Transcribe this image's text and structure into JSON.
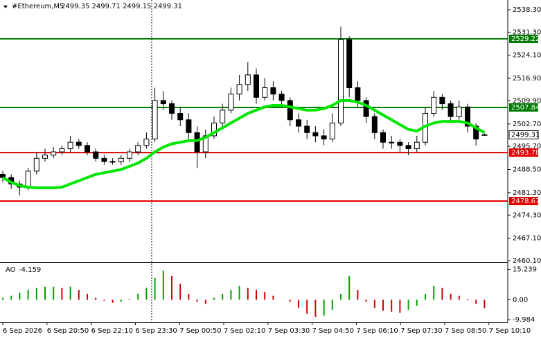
{
  "chart_data": {
    "type": "candlestick",
    "title": "#Ethereum,M5",
    "ohlc_text": "2499.35 2499.71 2499.15 2499.31",
    "candles": [
      [
        2487,
        2488,
        2484.5,
        2486
      ],
      [
        2486,
        2487,
        2482.5,
        2484
      ],
      [
        2484,
        2485,
        2480.5,
        2483
      ],
      [
        2483,
        2489,
        2482,
        2488
      ],
      [
        2488,
        2494,
        2487,
        2492
      ],
      [
        2492,
        2495,
        2491,
        2493
      ],
      [
        2493,
        2495.5,
        2492,
        2494
      ],
      [
        2494,
        2496,
        2493,
        2495
      ],
      [
        2495,
        2499,
        2494,
        2497
      ],
      [
        2497,
        2498,
        2495,
        2496
      ],
      [
        2496,
        2497,
        2493,
        2494
      ],
      [
        2494,
        2495,
        2491,
        2492
      ],
      [
        2492,
        2493,
        2490,
        2491
      ],
      [
        2491,
        2492,
        2490,
        2491
      ],
      [
        2491,
        2493,
        2490,
        2492
      ],
      [
        2492,
        2495,
        2491,
        2494
      ],
      [
        2494,
        2497,
        2493,
        2496
      ],
      [
        2496,
        2500,
        2495,
        2498
      ],
      [
        2498,
        2514,
        2497,
        2510
      ],
      [
        2510,
        2513,
        2507,
        2509
      ],
      [
        2509,
        2510,
        2504,
        2506
      ],
      [
        2506,
        2508,
        2502,
        2504
      ],
      [
        2504,
        2506,
        2498,
        2500
      ],
      [
        2500,
        2502,
        2489,
        2494
      ],
      [
        2494,
        2501,
        2492,
        2499
      ],
      [
        2499,
        2505,
        2498,
        2503
      ],
      [
        2503,
        2509,
        2502,
        2507
      ],
      [
        2507,
        2514,
        2506,
        2512
      ],
      [
        2512,
        2518,
        2510,
        2515
      ],
      [
        2515,
        2522,
        2513,
        2518
      ],
      [
        2518,
        2520,
        2509,
        2511
      ],
      [
        2511,
        2517,
        2510,
        2514
      ],
      [
        2514,
        2516,
        2510,
        2512
      ],
      [
        2512,
        2513,
        2508,
        2510
      ],
      [
        2510,
        2511,
        2502,
        2504
      ],
      [
        2504,
        2506,
        2500,
        2502
      ],
      [
        2502,
        2504,
        2498,
        2500
      ],
      [
        2500,
        2502,
        2497,
        2499
      ],
      [
        2499,
        2501,
        2496,
        2498
      ],
      [
        2498,
        2506,
        2497,
        2503
      ],
      [
        2503,
        2533,
        2502,
        2529
      ],
      [
        2529,
        2530,
        2511,
        2514
      ],
      [
        2514,
        2516,
        2508,
        2510
      ],
      [
        2510,
        2511,
        2503,
        2505
      ],
      [
        2505,
        2506,
        2498,
        2500
      ],
      [
        2500,
        2501,
        2495,
        2497
      ],
      [
        2497,
        2499,
        2495,
        2497
      ],
      [
        2497,
        2498,
        2494,
        2496
      ],
      [
        2496,
        2497,
        2493,
        2495
      ],
      [
        2495,
        2499,
        2494,
        2497
      ],
      [
        2497,
        2508,
        2496,
        2506
      ],
      [
        2506,
        2513,
        2505,
        2511
      ],
      [
        2511,
        2512,
        2507,
        2509
      ],
      [
        2509,
        2510,
        2503,
        2505
      ],
      [
        2505,
        2510,
        2504,
        2508
      ],
      [
        2508,
        2509,
        2500,
        2502
      ],
      [
        2502,
        2503,
        2496,
        2498
      ],
      [
        2499.35,
        2499.71,
        2499.15,
        2499.31
      ]
    ],
    "ma": {
      "color": "#00e600",
      "values": [
        2486,
        2484.5,
        2483.5,
        2483,
        2482.8,
        2482.8,
        2482.8,
        2483,
        2484,
        2485,
        2486,
        2487,
        2487.5,
        2488,
        2488.5,
        2489.5,
        2490.5,
        2492,
        2494,
        2495.5,
        2496.5,
        2497,
        2497.5,
        2497.5,
        2498.5,
        2500,
        2501.5,
        2503,
        2504.5,
        2506,
        2507,
        2508,
        2508.5,
        2508.5,
        2508,
        2507.5,
        2507,
        2507,
        2507.5,
        2508.5,
        2510,
        2510,
        2509.5,
        2508.5,
        2507,
        2505.5,
        2504,
        2502.5,
        2501,
        2500.5,
        2502,
        2503,
        2503.5,
        2503.5,
        2503.5,
        2503,
        2501.5,
        2500
      ]
    },
    "ylim": [
      2459.67,
      2541.32
    ],
    "yticks": [
      {
        "value": 2538.3,
        "label": "2538.30"
      },
      {
        "value": 2531.3,
        "label": "2531.30"
      },
      {
        "value": 2524.1,
        "label": "2524.10"
      },
      {
        "value": 2516.9,
        "label": "2516.90"
      },
      {
        "value": 2509.9,
        "label": "2509.90"
      },
      {
        "value": 2502.7,
        "label": "2502.70"
      },
      {
        "value": 2495.7,
        "label": "2495.70"
      },
      {
        "value": 2488.5,
        "label": "2488.50"
      },
      {
        "value": 2481.3,
        "label": "2481.30"
      },
      {
        "value": 2474.3,
        "label": "2474.30"
      },
      {
        "value": 2467.1,
        "label": "2467.10"
      },
      {
        "value": 2460.1,
        "label": "2460.10"
      }
    ],
    "levels": [
      {
        "value": 2529.22,
        "color": "#007a00"
      },
      {
        "value": 2507.84,
        "color": "#007a00"
      },
      {
        "value": 2493.78,
        "color": "#e00000"
      },
      {
        "value": 2478.67,
        "color": "#e00000"
      }
    ],
    "ao": {
      "name": "AO",
      "up_color": "#00a000",
      "down_color": "#d00000",
      "values": [
        1,
        2,
        3.5,
        5,
        6,
        6.5,
        6.5,
        6,
        6.5,
        5,
        3,
        1,
        -0.5,
        -1.5,
        -1,
        0.5,
        3,
        6,
        11,
        14.5,
        12,
        8,
        3,
        -1,
        -2,
        1,
        3,
        5,
        7,
        6,
        5,
        4,
        2,
        0,
        -1,
        -4,
        -7,
        -8.5,
        -8,
        -5,
        3,
        12,
        5,
        -1,
        -4,
        -5.5,
        -6,
        -6.5,
        -5,
        -3,
        3,
        7,
        6,
        3,
        2,
        0.5,
        -2,
        -4.159
      ],
      "ylim": [
        -11.3,
        18.2
      ],
      "yticks": [
        15.239,
        {
          "value": 0,
          "label": "0.00"
        },
        -9.984
      ]
    },
    "xtick_labels": [
      "6 Sep 2026",
      "6 Sep 20:50",
      "6 Sep 22:10",
      "6 Sep 23:30",
      "7 Sep 00:50",
      "7 Sep 02:10",
      "7 Sep 03:30",
      "7 Sep 04:50",
      "7 Sep 06:10",
      "7 Sep 07:30",
      "7 Sep 08:50",
      "7 Sep 10:10"
    ]
  }
}
